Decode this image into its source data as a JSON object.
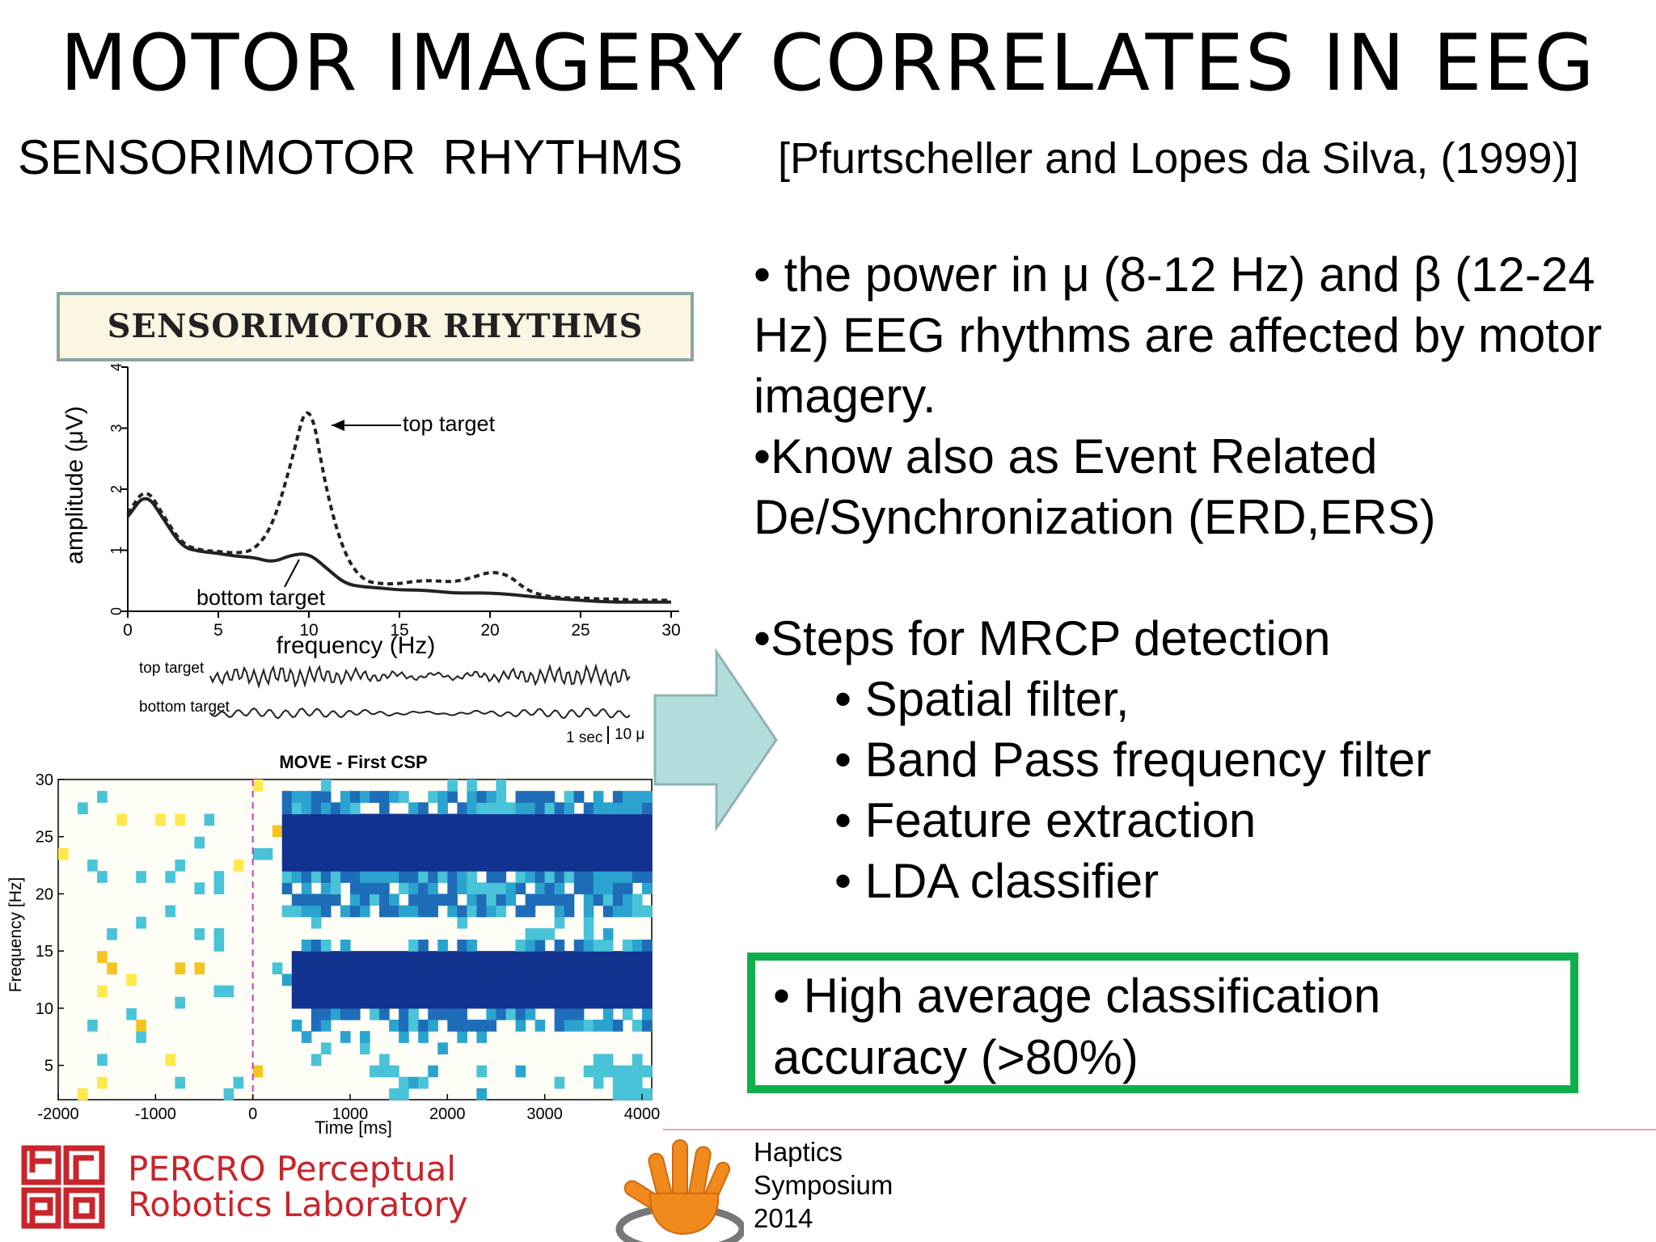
{
  "slide": {
    "title": "MOTOR IMAGERY CORRELATES IN EEG",
    "subtitle": "SENSORIMOTOR  RHYTHMS",
    "citation": "[Pfurtscheller and Lopes da Silva, (1999)]",
    "bullets": [
      "• the power in μ (8-12 Hz) and β (12-24",
      "Hz) EEG rhythms are affected by motor",
      "imagery.",
      "•Know also as Event Related",
      "De/Synchronization (ERD,ERS)"
    ],
    "steps_heading": "•Steps for MRCP detection",
    "steps": [
      "• Spatial filter,",
      "• Band Pass frequency filter",
      "• Feature extraction",
      "• LDA classifier"
    ],
    "highlight": [
      "• High average classification",
      "accuracy (>80%)"
    ],
    "footer": {
      "haptics": [
        "Haptics",
        "Symposium",
        "2014"
      ],
      "lab_name": [
        "PERCRO Perceptual",
        "Robotics Laboratory"
      ],
      "lab_logo_text": "PERCRO"
    },
    "colors": {
      "highlight_border": "#0fb04c",
      "arrow_fill": "#b3dcdc",
      "lab_red": "#c8252c",
      "hand_orange": "#f08a1c"
    }
  },
  "chart_data": [
    {
      "type": "line",
      "title": "SENSORIMOTOR RHYTHMS",
      "xlabel": "frequency (Hz)",
      "ylabel": "amplitude (μV)",
      "xlim": [
        0,
        30
      ],
      "ylim": [
        0,
        4
      ],
      "xticks": [
        0,
        5,
        10,
        15,
        20,
        25,
        30
      ],
      "yticks": [
        0,
        1,
        2,
        3,
        4
      ],
      "grid": false,
      "series": [
        {
          "name": "top target",
          "x": [
            0,
            1,
            2,
            3,
            4,
            5,
            6,
            7,
            8,
            9,
            10,
            11,
            12,
            13,
            14,
            15,
            16,
            17,
            18,
            19,
            20,
            21,
            22,
            23,
            24,
            25,
            26,
            27,
            28,
            29,
            30
          ],
          "y": [
            1.6,
            2.05,
            1.55,
            1.1,
            1.0,
            0.98,
            0.95,
            1.0,
            1.4,
            2.4,
            3.6,
            1.9,
            0.9,
            0.5,
            0.45,
            0.45,
            0.5,
            0.5,
            0.48,
            0.55,
            0.65,
            0.6,
            0.35,
            0.25,
            0.22,
            0.22,
            0.2,
            0.2,
            0.18,
            0.18,
            0.18
          ]
        },
        {
          "name": "bottom target",
          "x": [
            0,
            1,
            2,
            3,
            4,
            5,
            6,
            7,
            8,
            9,
            10,
            11,
            12,
            13,
            14,
            15,
            16,
            17,
            18,
            19,
            20,
            21,
            22,
            23,
            24,
            25,
            26,
            27,
            28,
            29,
            30
          ],
          "y": [
            1.55,
            1.95,
            1.5,
            1.05,
            0.98,
            0.95,
            0.9,
            0.88,
            0.8,
            0.92,
            0.95,
            0.7,
            0.45,
            0.4,
            0.38,
            0.35,
            0.35,
            0.33,
            0.3,
            0.3,
            0.3,
            0.28,
            0.25,
            0.22,
            0.2,
            0.18,
            0.16,
            0.15,
            0.15,
            0.15,
            0.15
          ]
        }
      ],
      "annotations": [
        "top target",
        "bottom target"
      ],
      "trace_labels": [
        "top target",
        "bottom target"
      ],
      "scale_labels": [
        "1 sec",
        "10 μ"
      ]
    },
    {
      "type": "heatmap",
      "title": "MOVE - First CSP",
      "xlabel": "Time [ms]",
      "ylabel": "Frequency [Hz]",
      "xlim": [
        -2000,
        4100
      ],
      "ylim": [
        2,
        30
      ],
      "xticks": [
        -2000,
        -1000,
        0,
        1000,
        2000,
        3000,
        4000
      ],
      "yticks": [
        5,
        10,
        15,
        20,
        25,
        30
      ],
      "event_marker_x": 0,
      "bands": [
        {
          "level": "strong",
          "x_from": 300,
          "x_to": 4100,
          "y_from": 22,
          "y_to": 27
        },
        {
          "level": "strong",
          "x_from": 400,
          "x_to": 4100,
          "y_from": 10,
          "y_to": 14.5
        }
      ]
    }
  ]
}
